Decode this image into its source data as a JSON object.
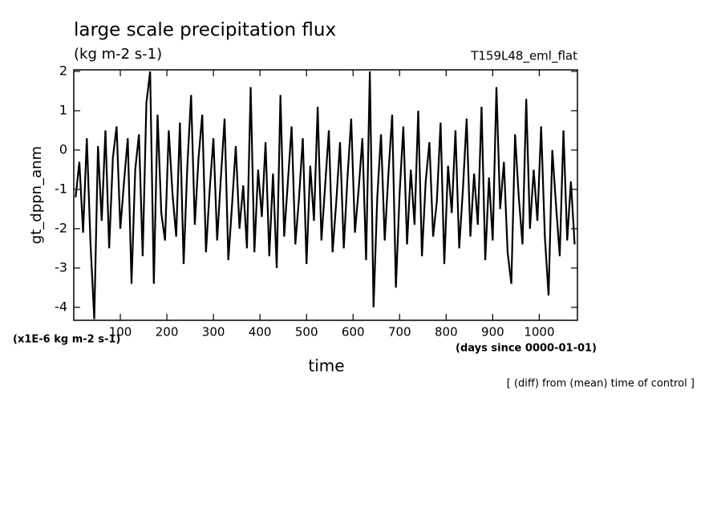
{
  "chart_data": {
    "type": "line",
    "title": "large scale precipitation flux",
    "subtitle": "(kg m-2 s-1)",
    "run_label": "T159L48_eml_flat",
    "ylabel": "gt_dppn_anm",
    "yunit_label": "(x1E-6 kg m-2 s-1)",
    "xlabel": "time",
    "xunit_label": "(days since 0000-01-01)",
    "annotation": "[ (diff) from (mean) time of control ]",
    "xlim": [
      0,
      1082
    ],
    "ylim": [
      -4.33,
      2.04
    ],
    "xticks": [
      100,
      200,
      300,
      400,
      500,
      600,
      700,
      800,
      900,
      1000
    ],
    "yticks": [
      -4,
      -3,
      -2,
      -1,
      0,
      1,
      2
    ],
    "x": [
      4,
      12,
      20,
      28,
      36,
      44,
      52,
      60,
      68,
      76,
      84,
      92,
      100,
      108,
      116,
      124,
      132,
      140,
      148,
      156,
      164,
      172,
      180,
      188,
      196,
      204,
      212,
      220,
      228,
      236,
      244,
      252,
      260,
      268,
      276,
      284,
      292,
      300,
      308,
      316,
      324,
      332,
      340,
      348,
      356,
      364,
      372,
      380,
      388,
      396,
      404,
      412,
      420,
      428,
      436,
      444,
      452,
      460,
      468,
      476,
      484,
      492,
      500,
      508,
      516,
      524,
      532,
      540,
      548,
      556,
      564,
      572,
      580,
      588,
      596,
      604,
      612,
      620,
      628,
      636,
      644,
      652,
      660,
      668,
      676,
      684,
      692,
      700,
      708,
      716,
      724,
      732,
      740,
      748,
      756,
      764,
      772,
      780,
      788,
      796,
      804,
      812,
      820,
      828,
      836,
      844,
      852,
      860,
      868,
      876,
      884,
      892,
      900,
      908,
      916,
      924,
      932,
      940,
      948,
      956,
      964,
      972,
      980,
      988,
      996,
      1004,
      1012,
      1020,
      1028,
      1036,
      1044,
      1052,
      1060,
      1068,
      1076
    ],
    "series": [
      {
        "color": "#000000",
        "values": [
          -1.2,
          -0.3,
          -2.1,
          0.3,
          -2.4,
          -4.3,
          0.1,
          -1.8,
          0.5,
          -2.5,
          -0.2,
          0.6,
          -2.0,
          -0.8,
          0.3,
          -3.4,
          -0.5,
          0.4,
          -2.7,
          1.2,
          2.0,
          -3.4,
          0.9,
          -1.6,
          -2.3,
          0.5,
          -1.1,
          -2.2,
          0.7,
          -2.9,
          -0.4,
          1.4,
          -1.9,
          -0.2,
          0.9,
          -2.6,
          -1.0,
          0.3,
          -2.3,
          -0.7,
          0.8,
          -2.8,
          -1.4,
          0.1,
          -2.0,
          -0.9,
          -2.5,
          1.6,
          -2.6,
          -0.5,
          -1.7,
          0.2,
          -2.7,
          -0.6,
          -3.0,
          1.4,
          -2.2,
          -0.8,
          0.6,
          -2.4,
          -1.2,
          0.3,
          -2.9,
          -0.4,
          -1.8,
          1.1,
          -2.3,
          -0.9,
          0.5,
          -2.6,
          -1.3,
          0.2,
          -2.5,
          -0.7,
          0.8,
          -2.1,
          -1.0,
          0.3,
          -2.8,
          2.0,
          -4.0,
          -1.2,
          0.4,
          -2.3,
          -0.6,
          0.9,
          -3.5,
          -1.1,
          0.6,
          -2.4,
          -0.5,
          -1.9,
          1.0,
          -2.7,
          -0.8,
          0.2,
          -2.2,
          -1.3,
          0.7,
          -2.9,
          -0.4,
          -1.6,
          0.5,
          -2.5,
          -1.0,
          0.8,
          -2.2,
          -0.6,
          -1.9,
          1.1,
          -2.8,
          -0.7,
          -2.3,
          1.6,
          -1.5,
          -0.3,
          -2.6,
          -3.4,
          0.4,
          -1.2,
          -2.4,
          1.3,
          -2.0,
          -0.5,
          -1.8,
          0.6,
          -2.2,
          -3.7,
          0.0,
          -1.4,
          -2.7,
          0.5,
          -2.3,
          -0.8,
          -2.4
        ]
      }
    ]
  }
}
